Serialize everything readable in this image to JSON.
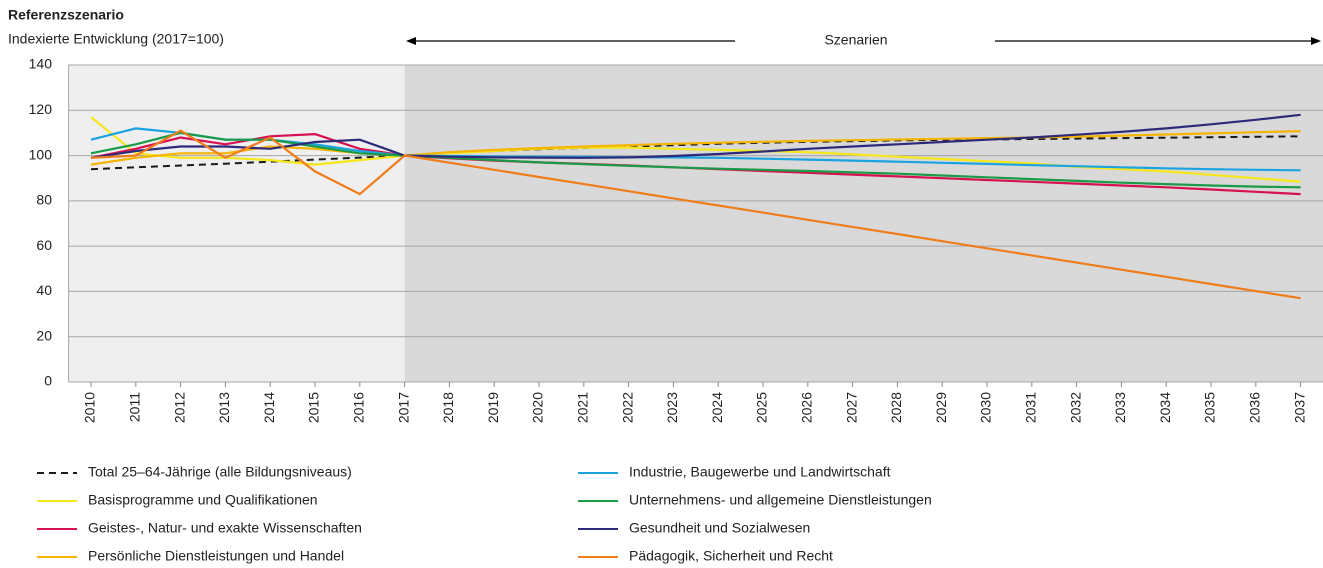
{
  "chart_data": {
    "type": "line",
    "title": "Referenzszenario",
    "subtitle": "Indexierte Entwicklung (2017=100)",
    "annotation": "Szenarien",
    "scenario_start": "2017",
    "categories": [
      "2010",
      "2011",
      "2012",
      "2013",
      "2014",
      "2015",
      "2016",
      "2017",
      "2018",
      "2019",
      "2020",
      "2021",
      "2022",
      "2023",
      "2024",
      "2025",
      "2026",
      "2027",
      "2028",
      "2029",
      "2030",
      "2031",
      "2032",
      "2033",
      "2034",
      "2035",
      "2036",
      "2037"
    ],
    "ylim": [
      0,
      140
    ],
    "yticks": [
      0,
      20,
      40,
      60,
      80,
      100,
      120,
      140
    ],
    "series": [
      {
        "name": "Total 25–64-Jährige (alle Bildungsniveaus)",
        "color": "#1a1a1a",
        "dashed": true,
        "values": [
          94,
          94.8,
          95.6,
          96.4,
          97.3,
          98.2,
          99.1,
          100,
          101.2,
          102,
          102.8,
          103.4,
          104,
          104.6,
          105.2,
          105.7,
          106.1,
          106.4,
          106.7,
          106.9,
          107.1,
          107.3,
          107.5,
          107.7,
          107.9,
          108.1,
          108.3,
          108.5
        ]
      },
      {
        "name": "Basisprogramme und Qualifikationen",
        "color": "#f5e71a",
        "values": [
          117,
          101,
          99,
          99,
          98,
          96,
          98,
          100,
          101,
          102,
          103,
          103.5,
          103.5,
          103,
          102.5,
          102,
          101.5,
          100.5,
          99.5,
          98.5,
          97.5,
          96.5,
          95,
          94,
          93,
          91.5,
          90,
          88.5
        ]
      },
      {
        "name": "Geistes-, Natur- und exakte Wissenschaften",
        "color": "#d6114f",
        "values": [
          99,
          103,
          108,
          105,
          108.5,
          109.5,
          103,
          100,
          98.8,
          97.8,
          97,
          96.3,
          95.6,
          94.8,
          94,
          93.2,
          92.4,
          91.6,
          90.8,
          90,
          89.2,
          88.4,
          87.6,
          86.8,
          86,
          85,
          84,
          83
        ]
      },
      {
        "name": "Persönliche Dienstleistungen und Handel",
        "color": "#f5b400",
        "values": [
          96,
          99,
          101,
          101,
          104,
          103,
          101,
          100,
          101.5,
          102.5,
          103.3,
          104,
          104.6,
          105.2,
          105.7,
          106.1,
          106.5,
          106.8,
          107.1,
          107.4,
          107.7,
          108,
          108.4,
          108.8,
          109.3,
          109.8,
          110.3,
          110.8
        ]
      },
      {
        "name": "Industrie, Baugewerbe und Landwirtschaft",
        "color": "#1aa3e0",
        "values": [
          107,
          112,
          110,
          107,
          107,
          105,
          102,
          100,
          99.8,
          99.6,
          99.5,
          99.4,
          99.3,
          99.2,
          99,
          98.6,
          98.2,
          97.8,
          97.3,
          96.8,
          96.3,
          95.8,
          95.3,
          94.8,
          94.4,
          94,
          93.7,
          93.5
        ]
      },
      {
        "name": "Unternehmens- und allgemeine Dienstleistungen",
        "color": "#1a9b48",
        "values": [
          101,
          105,
          110,
          107,
          107,
          104,
          101,
          100,
          99,
          98,
          97,
          96.2,
          95.5,
          94.8,
          94.2,
          93.7,
          93.2,
          92.6,
          92,
          91.2,
          90.4,
          89.6,
          88.8,
          88,
          87.4,
          86.8,
          86.3,
          86
        ]
      },
      {
        "name": "Gesundheit und Sozialwesen",
        "color": "#2e2a7a",
        "values": [
          99,
          102,
          104,
          104,
          103,
          106,
          107,
          100,
          99.5,
          99.2,
          99.1,
          99,
          99.2,
          99.8,
          100.7,
          101.8,
          103,
          104,
          105,
          106,
          107,
          108,
          109.2,
          110.5,
          112,
          113.8,
          115.8,
          118
        ]
      },
      {
        "name": "Pädagogik, Sicherheit und Recht",
        "color": "#f07d1a",
        "values": [
          99,
          100,
          111,
          99,
          108,
          93,
          83,
          100,
          96.85,
          93.7,
          90.55,
          87.4,
          84.25,
          81.1,
          77.95,
          74.8,
          71.65,
          68.5,
          65.35,
          62.2,
          59.05,
          55.9,
          52.75,
          49.6,
          46.45,
          43.3,
          40.15,
          37
        ]
      }
    ]
  }
}
